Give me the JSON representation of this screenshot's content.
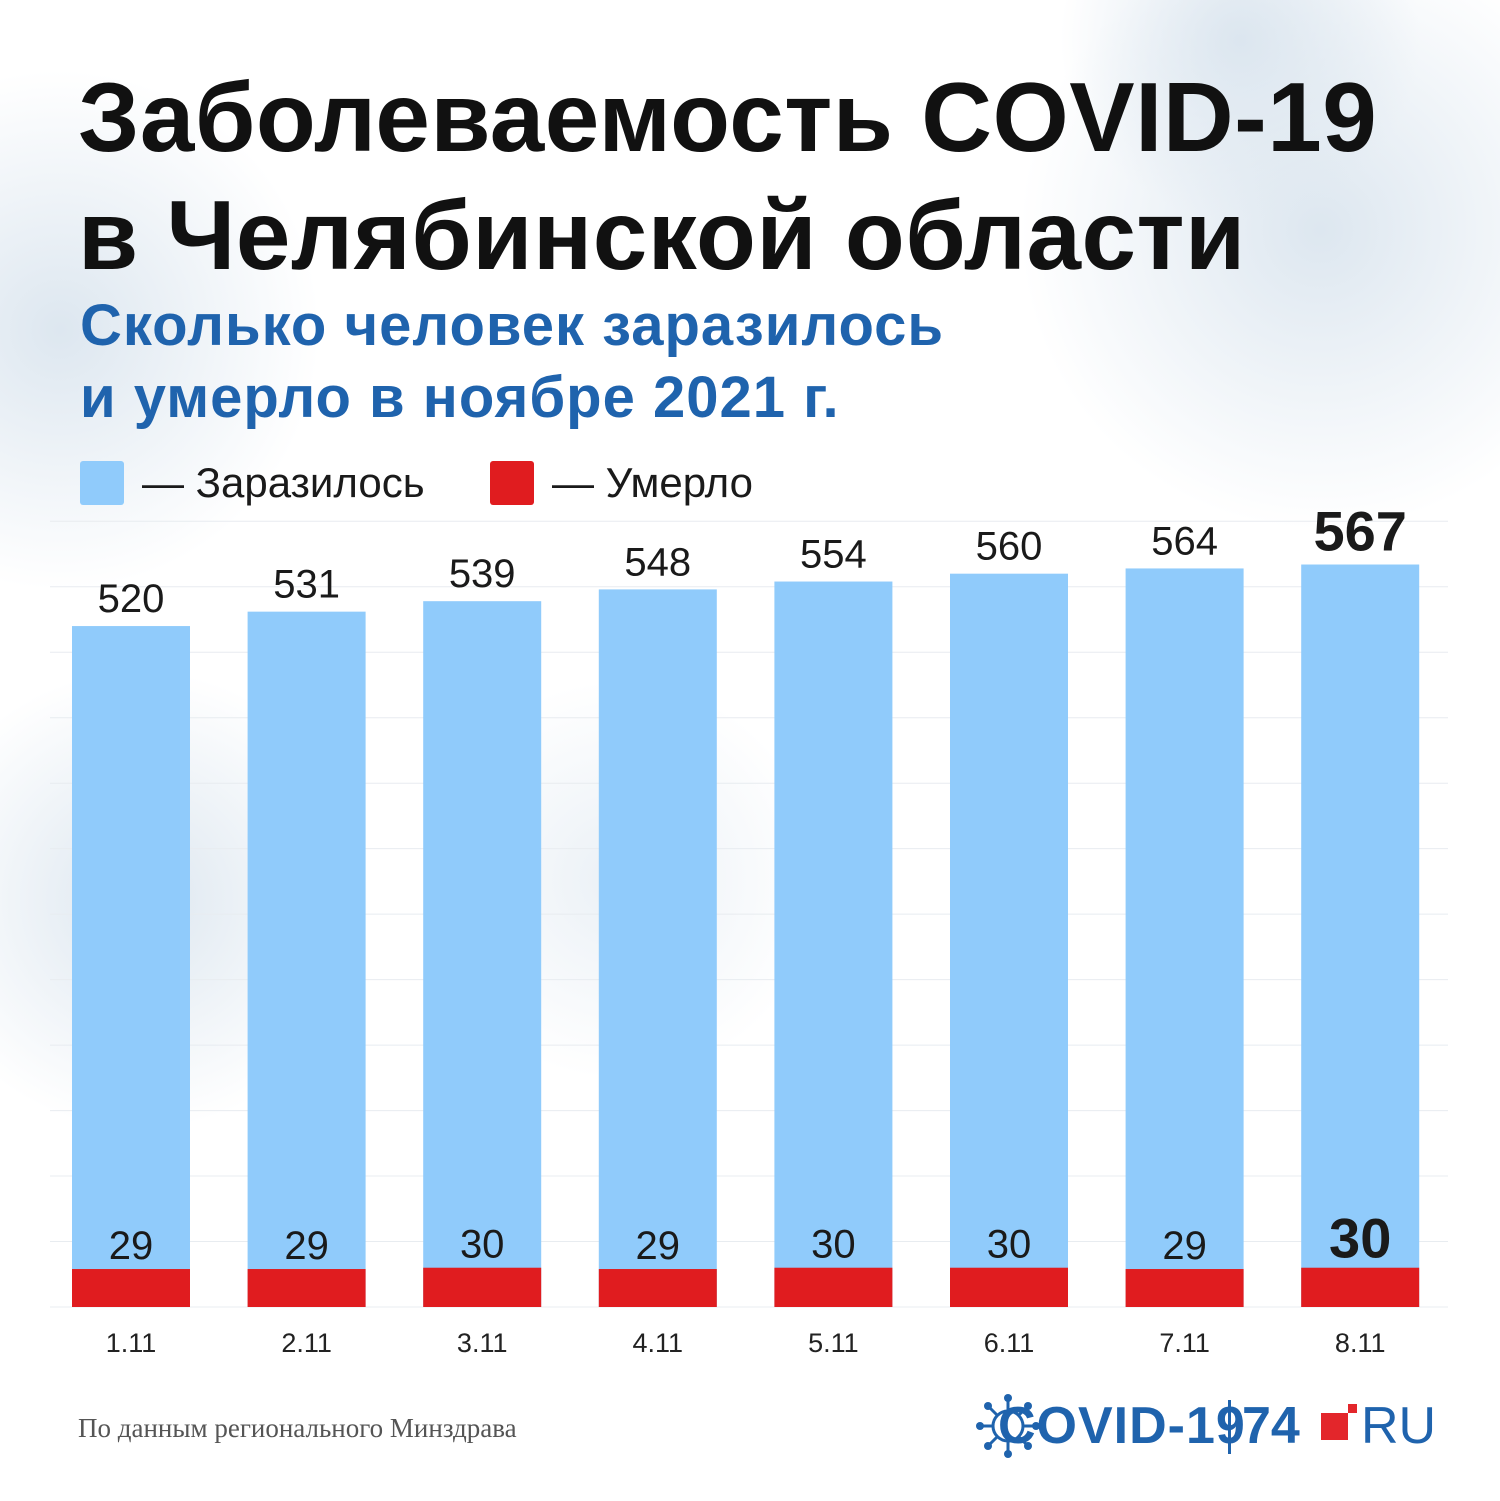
{
  "title_line1": "Заболеваемость COVID-19",
  "title_line2": "в Челябинской области",
  "subtitle_line1": "Сколько человек заразилось",
  "subtitle_line2": "и умерло в ноябре 2021 г.",
  "legend": {
    "infected": "— Заразилось",
    "died": "— Умерло"
  },
  "source": "По данным регионального Минздрава",
  "logo": {
    "covid": "COVID-19",
    "number": "74",
    "ru": "RU"
  },
  "colors": {
    "infected": "#90cbfb",
    "died": "#e01c1f",
    "subtitle": "#1f63ad",
    "title": "#111111"
  },
  "chart_data": {
    "type": "bar",
    "categories": [
      "1.11",
      "2.11",
      "3.11",
      "4.11",
      "5.11",
      "6.11",
      "7.11",
      "8.11"
    ],
    "series": [
      {
        "name": "Заразилось",
        "values": [
          520,
          531,
          539,
          548,
          554,
          560,
          564,
          567
        ]
      },
      {
        "name": "Умерло",
        "values": [
          29,
          29,
          30,
          29,
          30,
          30,
          29,
          30
        ]
      }
    ],
    "highlight_last": true,
    "grid": true,
    "legend_position": "top-left"
  }
}
